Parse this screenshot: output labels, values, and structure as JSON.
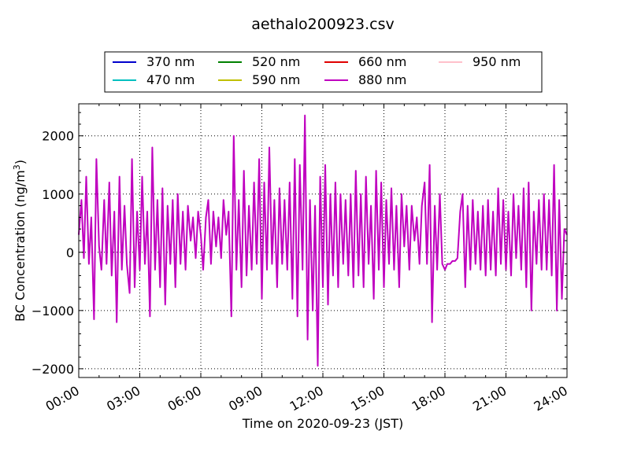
{
  "chart_data": {
    "type": "line",
    "title": "aethalo200923.csv",
    "xlabel": "Time on 2020-09-23 (JST)",
    "ylabel_main": "BC Concentration (ng/m",
    "ylabel_sup": "3",
    "ylabel_close": ")",
    "xlim": [
      "00:00",
      "24:00"
    ],
    "ylim": [
      -2150,
      2550
    ],
    "x_ticks": [
      "00:00",
      "03:00",
      "06:00",
      "09:00",
      "12:00",
      "15:00",
      "18:00",
      "21:00",
      "24:00"
    ],
    "y_ticks": [
      {
        "value": 2000,
        "label": "2000"
      },
      {
        "value": 1000,
        "label": "1000"
      },
      {
        "value": 0,
        "label": "0"
      },
      {
        "value": -1000,
        "label": "−1000"
      },
      {
        "value": -2000,
        "label": "−2000"
      }
    ],
    "grid": true,
    "legend_placement": "top-center",
    "legend": [
      {
        "name": "370 nm",
        "color": "#0000cc"
      },
      {
        "name": "470 nm",
        "color": "#00bfbf"
      },
      {
        "name": "520 nm",
        "color": "#008000"
      },
      {
        "name": "590 nm",
        "color": "#bfbf00"
      },
      {
        "name": "660 nm",
        "color": "#e00000"
      },
      {
        "name": "880 nm",
        "color": "#bf00bf"
      },
      {
        "name": "950 nm",
        "color": "#ffc0cb"
      }
    ],
    "series_points": [
      {
        "name": "880 nm",
        "color": "#bf00bf",
        "points": [
          [
            "00:00",
            300
          ],
          [
            "00:08",
            900
          ],
          [
            "00:15",
            -100
          ],
          [
            "00:22",
            1300
          ],
          [
            "00:30",
            -200
          ],
          [
            "00:37",
            600
          ],
          [
            "00:45",
            -1150
          ],
          [
            "00:52",
            1600
          ],
          [
            "01:00",
            100
          ],
          [
            "01:07",
            -300
          ],
          [
            "01:15",
            900
          ],
          [
            "01:22",
            -200
          ],
          [
            "01:30",
            1200
          ],
          [
            "01:37",
            -400
          ],
          [
            "01:45",
            700
          ],
          [
            "01:52",
            -1200
          ],
          [
            "02:00",
            1300
          ],
          [
            "02:07",
            -300
          ],
          [
            "02:15",
            800
          ],
          [
            "02:22",
            -200
          ],
          [
            "02:30",
            -700
          ],
          [
            "02:37",
            1600
          ],
          [
            "02:45",
            -600
          ],
          [
            "02:52",
            700
          ],
          [
            "03:00",
            -300
          ],
          [
            "03:07",
            1300
          ],
          [
            "03:15",
            -200
          ],
          [
            "03:22",
            700
          ],
          [
            "03:30",
            -1100
          ],
          [
            "03:37",
            1800
          ],
          [
            "03:45",
            -300
          ],
          [
            "03:52",
            900
          ],
          [
            "04:00",
            -600
          ],
          [
            "04:07",
            1100
          ],
          [
            "04:15",
            -900
          ],
          [
            "04:22",
            800
          ],
          [
            "04:30",
            -200
          ],
          [
            "04:37",
            900
          ],
          [
            "04:45",
            -600
          ],
          [
            "04:52",
            1000
          ],
          [
            "05:00",
            -200
          ],
          [
            "05:07",
            700
          ],
          [
            "05:15",
            -300
          ],
          [
            "05:22",
            800
          ],
          [
            "05:30",
            200
          ],
          [
            "05:37",
            600
          ],
          [
            "05:45",
            -100
          ],
          [
            "05:52",
            700
          ],
          [
            "06:00",
            300
          ],
          [
            "06:07",
            -300
          ],
          [
            "06:15",
            600
          ],
          [
            "06:22",
            900
          ],
          [
            "06:30",
            -200
          ],
          [
            "06:37",
            700
          ],
          [
            "06:45",
            100
          ],
          [
            "06:52",
            600
          ],
          [
            "07:00",
            -100
          ],
          [
            "07:07",
            900
          ],
          [
            "07:15",
            300
          ],
          [
            "07:22",
            700
          ],
          [
            "07:30",
            -1100
          ],
          [
            "07:37",
            2000
          ],
          [
            "07:45",
            -300
          ],
          [
            "07:52",
            900
          ],
          [
            "08:00",
            -600
          ],
          [
            "08:07",
            1400
          ],
          [
            "08:15",
            -400
          ],
          [
            "08:22",
            800
          ],
          [
            "08:30",
            -300
          ],
          [
            "08:37",
            1200
          ],
          [
            "08:45",
            -200
          ],
          [
            "08:52",
            1600
          ],
          [
            "09:00",
            -800
          ],
          [
            "09:07",
            1200
          ],
          [
            "09:15",
            -300
          ],
          [
            "09:22",
            1800
          ],
          [
            "09:30",
            -200
          ],
          [
            "09:37",
            900
          ],
          [
            "09:45",
            -600
          ],
          [
            "09:52",
            1100
          ],
          [
            "10:00",
            -200
          ],
          [
            "10:07",
            900
          ],
          [
            "10:15",
            -300
          ],
          [
            "10:22",
            1200
          ],
          [
            "10:30",
            -800
          ],
          [
            "10:37",
            1600
          ],
          [
            "10:45",
            -1100
          ],
          [
            "10:52",
            1500
          ],
          [
            "11:00",
            -300
          ],
          [
            "11:07",
            2350
          ],
          [
            "11:15",
            -1500
          ],
          [
            "11:22",
            900
          ],
          [
            "11:30",
            -1000
          ],
          [
            "11:37",
            800
          ],
          [
            "11:45",
            -1950
          ],
          [
            "11:52",
            1300
          ],
          [
            "12:00",
            -600
          ],
          [
            "12:07",
            1500
          ],
          [
            "12:15",
            -900
          ],
          [
            "12:22",
            1000
          ],
          [
            "12:30",
            -400
          ],
          [
            "12:37",
            1200
          ],
          [
            "12:45",
            -600
          ],
          [
            "12:52",
            1000
          ],
          [
            "13:00",
            -200
          ],
          [
            "13:07",
            900
          ],
          [
            "13:15",
            -400
          ],
          [
            "13:22",
            1000
          ],
          [
            "13:30",
            -600
          ],
          [
            "13:37",
            1400
          ],
          [
            "13:45",
            -400
          ],
          [
            "13:52",
            1000
          ],
          [
            "14:00",
            -600
          ],
          [
            "14:07",
            1300
          ],
          [
            "14:15",
            -200
          ],
          [
            "14:22",
            800
          ],
          [
            "14:30",
            -800
          ],
          [
            "14:37",
            1400
          ],
          [
            "14:45",
            -300
          ],
          [
            "14:52",
            1200
          ],
          [
            "15:00",
            -600
          ],
          [
            "15:07",
            900
          ],
          [
            "15:15",
            -200
          ],
          [
            "15:22",
            1100
          ],
          [
            "15:30",
            -300
          ],
          [
            "15:37",
            800
          ],
          [
            "15:45",
            -600
          ],
          [
            "15:52",
            1000
          ],
          [
            "16:00",
            100
          ],
          [
            "16:07",
            800
          ],
          [
            "16:15",
            -300
          ],
          [
            "16:22",
            800
          ],
          [
            "16:30",
            200
          ],
          [
            "16:37",
            600
          ],
          [
            "16:45",
            -200
          ],
          [
            "16:52",
            800
          ],
          [
            "17:00",
            1200
          ],
          [
            "17:07",
            -200
          ],
          [
            "17:15",
            1500
          ],
          [
            "17:22",
            -1200
          ],
          [
            "17:30",
            800
          ],
          [
            "17:37",
            -300
          ],
          [
            "17:45",
            1000
          ],
          [
            "17:52",
            -200
          ],
          [
            "18:00",
            -300
          ],
          [
            "18:07",
            -200
          ],
          [
            "18:15",
            -200
          ],
          [
            "18:22",
            -150
          ],
          [
            "18:30",
            -150
          ],
          [
            "18:37",
            -100
          ],
          [
            "18:45",
            700
          ],
          [
            "18:52",
            1000
          ],
          [
            "19:00",
            -600
          ],
          [
            "19:07",
            800
          ],
          [
            "19:15",
            -300
          ],
          [
            "19:22",
            900
          ],
          [
            "19:30",
            -200
          ],
          [
            "19:37",
            700
          ],
          [
            "19:45",
            -300
          ],
          [
            "19:52",
            800
          ],
          [
            "20:00",
            -400
          ],
          [
            "20:07",
            900
          ],
          [
            "20:15",
            -300
          ],
          [
            "20:22",
            700
          ],
          [
            "20:30",
            -400
          ],
          [
            "20:37",
            1100
          ],
          [
            "20:45",
            -200
          ],
          [
            "20:52",
            900
          ],
          [
            "21:00",
            -300
          ],
          [
            "21:07",
            700
          ],
          [
            "21:15",
            -400
          ],
          [
            "21:22",
            1000
          ],
          [
            "21:30",
            -100
          ],
          [
            "21:37",
            800
          ],
          [
            "21:45",
            -300
          ],
          [
            "21:52",
            1100
          ],
          [
            "22:00",
            -600
          ],
          [
            "22:07",
            1200
          ],
          [
            "22:15",
            -1000
          ],
          [
            "22:22",
            700
          ],
          [
            "22:30",
            -200
          ],
          [
            "22:37",
            900
          ],
          [
            "22:45",
            -300
          ],
          [
            "22:52",
            1000
          ],
          [
            "23:00",
            -300
          ],
          [
            "23:07",
            900
          ],
          [
            "23:15",
            -400
          ],
          [
            "23:22",
            1500
          ],
          [
            "23:30",
            -1000
          ],
          [
            "23:37",
            900
          ],
          [
            "23:45",
            -800
          ],
          [
            "23:52",
            400
          ],
          [
            "24:00",
            300
          ]
        ]
      }
    ]
  }
}
